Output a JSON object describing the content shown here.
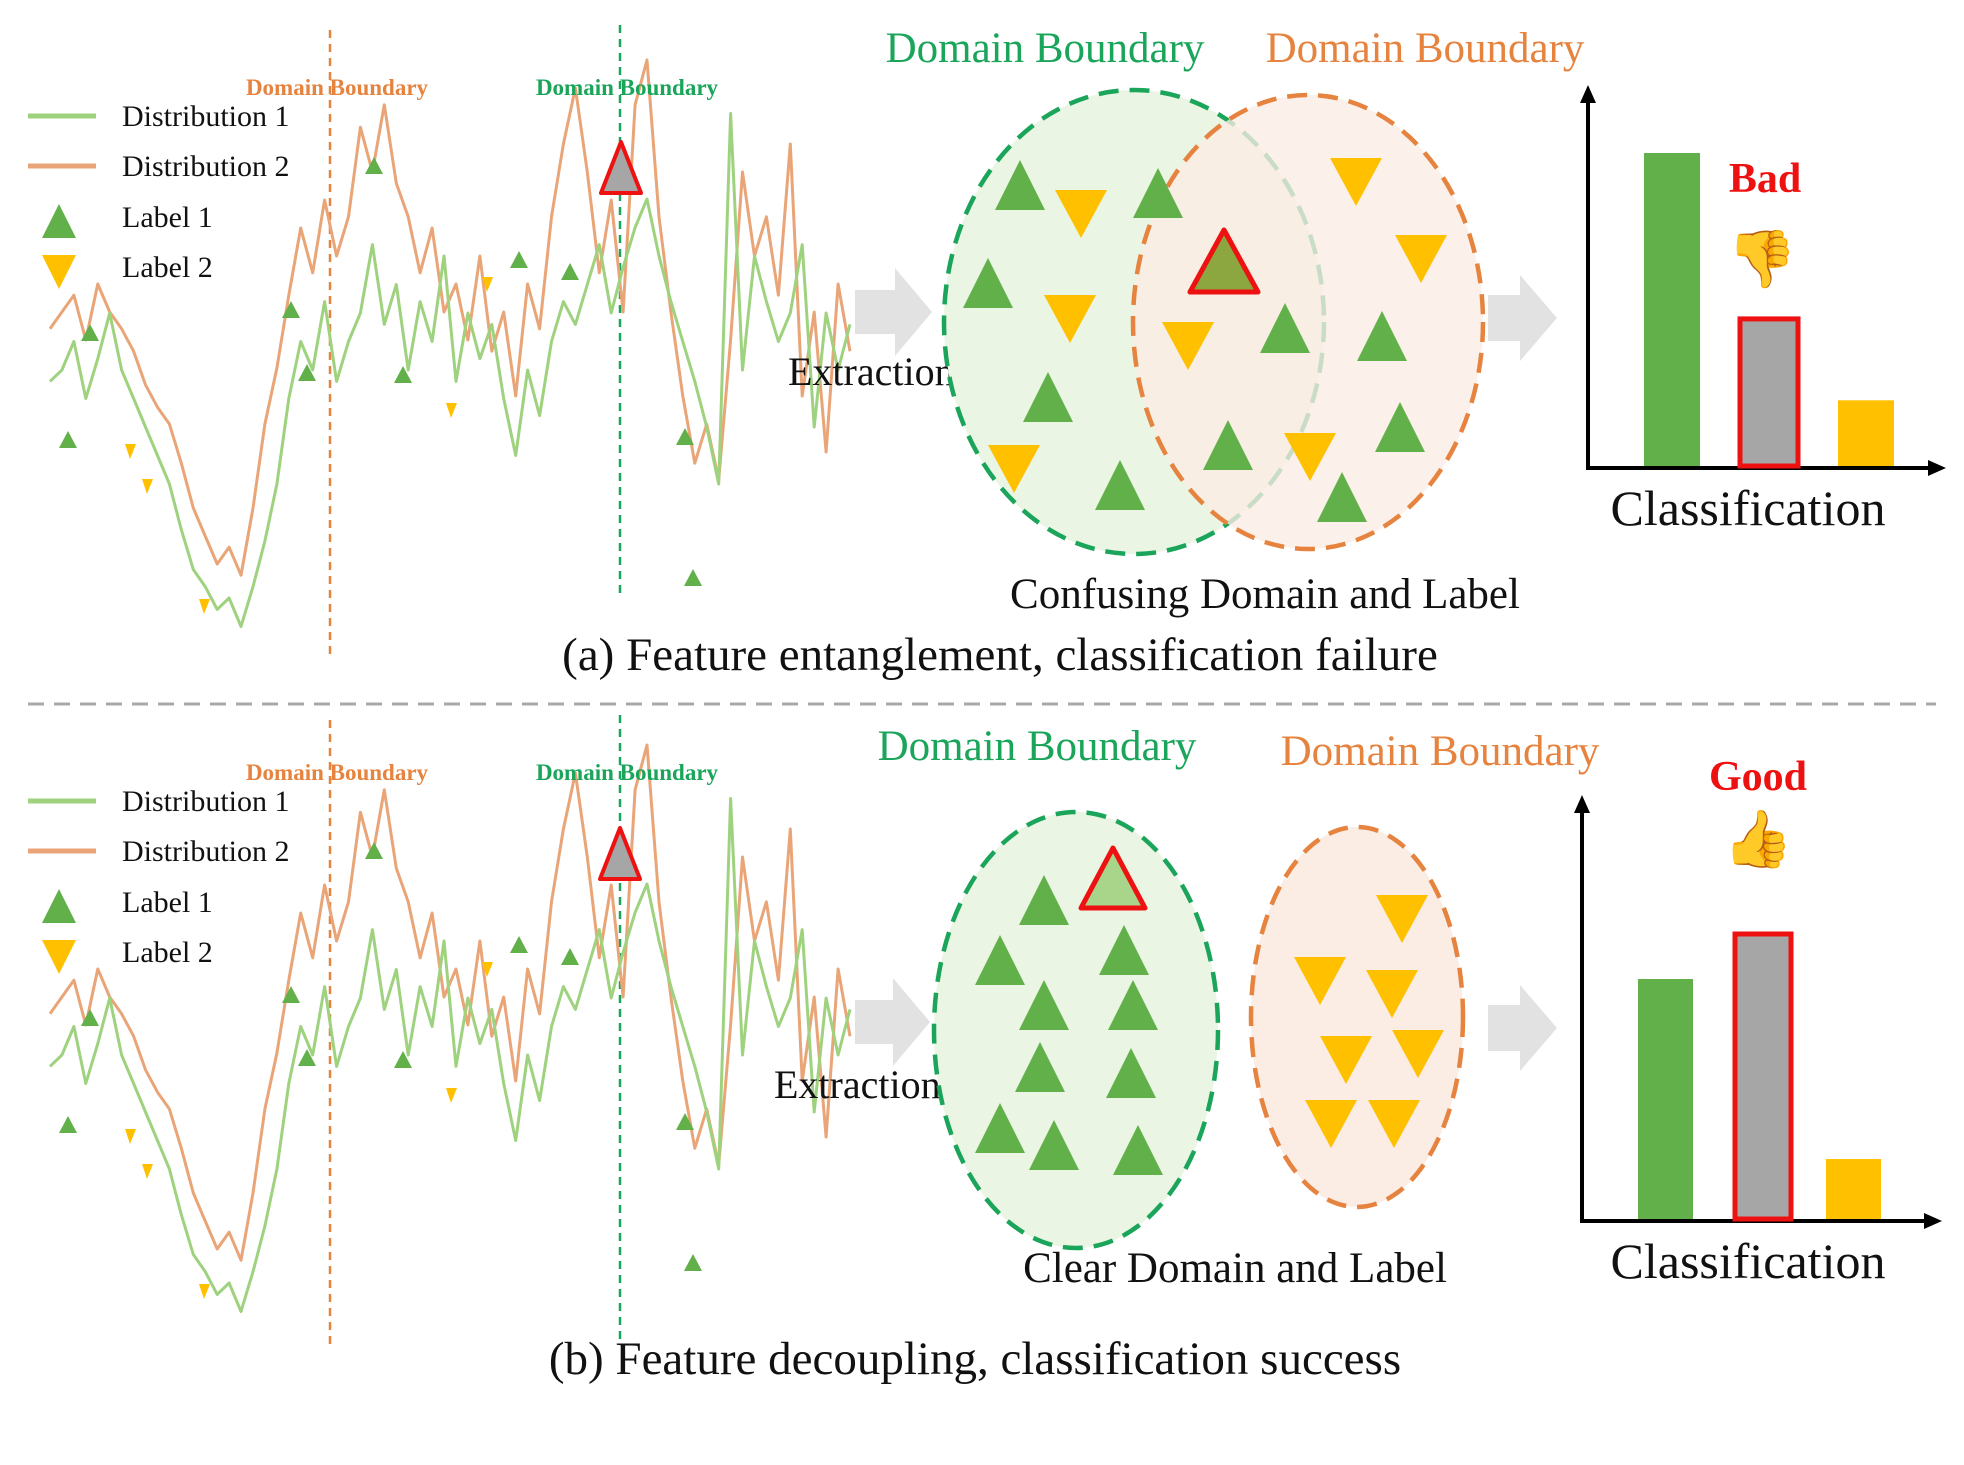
{
  "colors": {
    "green": "#62b04a",
    "green_dark": "#1aa55a",
    "orange": "#e5833f",
    "line_green": "#9fd27e",
    "line_orange": "#e9a578",
    "yellow": "#ffc000",
    "gray": "#a6a6a6",
    "red": "#ee1111",
    "arrow": "#e2e2e2",
    "green_fill": "#eaf5e4",
    "orange_fill": "#fbece4"
  },
  "legend": {
    "dist1": "Distribution 1",
    "dist2": "Distribution 2",
    "label1": "Label 1",
    "label2": "Label 2"
  },
  "panel_a": {
    "series_boundary_orange": "Domain Boundary",
    "series_boundary_green": "Domain Boundary",
    "extraction": "Extraction",
    "cluster_label_green": "Domain Boundary",
    "cluster_label_orange": "Domain Boundary",
    "cluster_caption": "Confusing Domain and Label",
    "verdict": "Bad",
    "verdict_emoji": "👎",
    "chart_xlabel": "Classification",
    "bar_values": [
      1.0,
      0.47,
      0.21
    ],
    "caption": "(a) Feature entanglement,  classification failure"
  },
  "panel_b": {
    "series_boundary_orange": "Domain Boundary",
    "series_boundary_green": "Domain Boundary",
    "extraction": "Extraction",
    "cluster_label_green": "Domain Boundary",
    "cluster_label_orange": "Domain Boundary",
    "cluster_caption": "Clear Domain and Label",
    "verdict": "Good",
    "verdict_emoji": "👍",
    "chart_xlabel": "Classification",
    "bar_values": [
      0.8,
      0.95,
      0.2
    ],
    "caption": "(b) Feature decoupling, classification success"
  },
  "series": {
    "green": [
      0.48,
      0.5,
      0.55,
      0.45,
      0.52,
      0.6,
      0.5,
      0.45,
      0.4,
      0.35,
      0.3,
      0.22,
      0.15,
      0.12,
      0.08,
      0.1,
      0.05,
      0.12,
      0.2,
      0.3,
      0.45,
      0.55,
      0.5,
      0.62,
      0.48,
      0.55,
      0.6,
      0.72,
      0.58,
      0.65,
      0.5,
      0.62,
      0.55,
      0.7,
      0.48,
      0.6,
      0.52,
      0.58,
      0.45,
      0.35,
      0.5,
      0.42,
      0.55,
      0.62,
      0.58,
      0.65,
      0.72,
      0.6,
      0.68,
      0.75,
      0.8,
      0.7,
      0.62,
      0.55,
      0.48,
      0.4,
      0.3,
      0.95,
      0.5,
      0.7,
      0.62,
      0.55,
      0.6,
      0.72,
      0.4,
      0.6,
      0.5,
      0.58
    ],
    "orange": [
      0.52,
      0.55,
      0.58,
      0.5,
      0.6,
      0.55,
      0.52,
      0.48,
      0.42,
      0.38,
      0.35,
      0.28,
      0.2,
      0.15,
      0.1,
      0.13,
      0.08,
      0.2,
      0.35,
      0.45,
      0.58,
      0.7,
      0.62,
      0.75,
      0.65,
      0.72,
      0.88,
      0.8,
      0.92,
      0.78,
      0.72,
      0.62,
      0.7,
      0.55,
      0.6,
      0.5,
      0.65,
      0.48,
      0.55,
      0.4,
      0.6,
      0.52,
      0.72,
      0.85,
      0.95,
      0.8,
      0.62,
      0.75,
      0.55,
      0.92,
      1.0,
      0.72,
      0.55,
      0.4,
      0.28,
      0.35,
      0.25,
      0.5,
      0.8,
      0.65,
      0.72,
      0.58,
      0.85,
      0.4,
      0.55,
      0.3,
      0.6,
      0.48
    ]
  }
}
